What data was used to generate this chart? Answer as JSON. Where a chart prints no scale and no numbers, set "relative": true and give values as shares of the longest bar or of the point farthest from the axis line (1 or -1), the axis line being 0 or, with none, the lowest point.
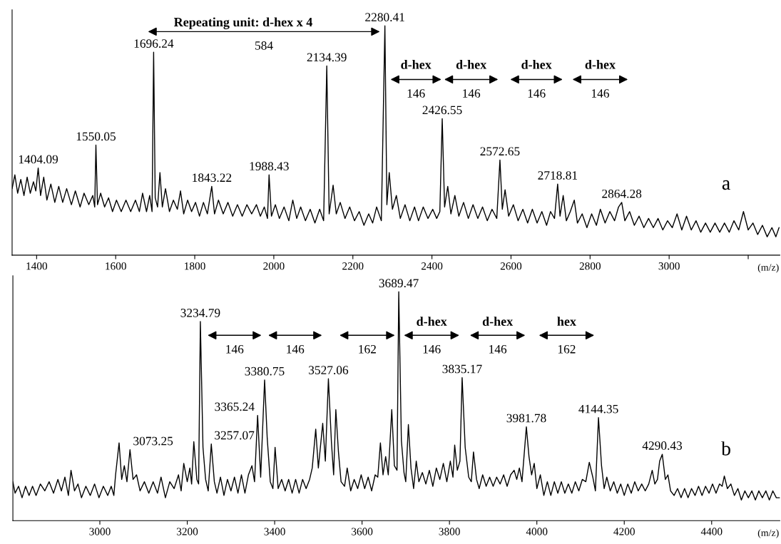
{
  "chart_data": [
    {
      "type": "line",
      "relative": true,
      "xlabel": "(m/z)",
      "xlim": [
        1338,
        3280
      ],
      "xticks": [
        1400,
        1600,
        1800,
        2000,
        2200,
        2400,
        2600,
        2800,
        3000,
        {
          "value": 3200,
          "label": null
        }
      ],
      "series": [
        {
          "color": "#000000",
          "x": [
            1338,
            1345,
            1352,
            1360,
            1368,
            1376,
            1384,
            1392,
            1398,
            1404,
            1410,
            1418,
            1426,
            1436,
            1446,
            1456,
            1466,
            1476,
            1488,
            1498,
            1510,
            1520,
            1532,
            1542,
            1547,
            1550,
            1554,
            1562,
            1572,
            1582,
            1592,
            1602,
            1614,
            1626,
            1638,
            1650,
            1660,
            1668,
            1678,
            1686,
            1692,
            1696,
            1700,
            1706,
            1712,
            1718,
            1726,
            1736,
            1746,
            1756,
            1764,
            1772,
            1782,
            1792,
            1802,
            1812,
            1822,
            1832,
            1843,
            1850,
            1860,
            1872,
            1884,
            1896,
            1908,
            1920,
            1932,
            1944,
            1956,
            1966,
            1976,
            1984,
            1988,
            1994,
            2004,
            2014,
            2026,
            2038,
            2048,
            2058,
            2068,
            2080,
            2092,
            2104,
            2116,
            2126,
            2134,
            2140,
            2150,
            2158,
            2168,
            2180,
            2192,
            2204,
            2216,
            2228,
            2240,
            2250,
            2260,
            2272,
            2281,
            2286,
            2292,
            2300,
            2310,
            2320,
            2332,
            2344,
            2356,
            2366,
            2378,
            2390,
            2402,
            2412,
            2420,
            2426,
            2432,
            2440,
            2448,
            2458,
            2468,
            2480,
            2492,
            2504,
            2516,
            2528,
            2540,
            2552,
            2564,
            2572,
            2578,
            2585,
            2594,
            2606,
            2618,
            2630,
            2642,
            2654,
            2666,
            2678,
            2690,
            2700,
            2710,
            2718,
            2724,
            2732,
            2740,
            2750,
            2760,
            2768,
            2780,
            2792,
            2804,
            2816,
            2826,
            2838,
            2850,
            2862,
            2872,
            2880,
            2888,
            2900,
            2912,
            2924,
            2936,
            2948,
            2960,
            2972,
            2984,
            2996,
            3008,
            3020,
            3032,
            3044,
            3056,
            3068,
            3080,
            3092,
            3104,
            3116,
            3128,
            3140,
            3152,
            3164,
            3176,
            3188,
            3200,
            3212,
            3224,
            3236,
            3248,
            3260,
            3270,
            3278
          ],
          "values": [
            0.29,
            0.35,
            0.27,
            0.33,
            0.26,
            0.34,
            0.27,
            0.32,
            0.28,
            0.38,
            0.26,
            0.34,
            0.24,
            0.31,
            0.23,
            0.3,
            0.23,
            0.29,
            0.22,
            0.28,
            0.21,
            0.27,
            0.22,
            0.26,
            0.21,
            0.48,
            0.22,
            0.27,
            0.21,
            0.25,
            0.19,
            0.24,
            0.19,
            0.24,
            0.19,
            0.24,
            0.19,
            0.27,
            0.19,
            0.26,
            0.19,
            0.885,
            0.25,
            0.21,
            0.36,
            0.21,
            0.29,
            0.19,
            0.24,
            0.2,
            0.28,
            0.18,
            0.24,
            0.19,
            0.23,
            0.17,
            0.23,
            0.18,
            0.3,
            0.18,
            0.24,
            0.18,
            0.23,
            0.17,
            0.22,
            0.17,
            0.22,
            0.18,
            0.22,
            0.17,
            0.21,
            0.16,
            0.35,
            0.17,
            0.22,
            0.16,
            0.21,
            0.15,
            0.24,
            0.16,
            0.21,
            0.15,
            0.2,
            0.14,
            0.2,
            0.15,
            0.825,
            0.18,
            0.305,
            0.18,
            0.23,
            0.16,
            0.21,
            0.15,
            0.19,
            0.13,
            0.18,
            0.14,
            0.21,
            0.15,
            1.0,
            0.22,
            0.36,
            0.2,
            0.26,
            0.16,
            0.22,
            0.15,
            0.21,
            0.15,
            0.21,
            0.16,
            0.2,
            0.16,
            0.19,
            0.595,
            0.21,
            0.3,
            0.18,
            0.26,
            0.17,
            0.23,
            0.16,
            0.22,
            0.16,
            0.21,
            0.15,
            0.2,
            0.16,
            0.415,
            0.2,
            0.285,
            0.17,
            0.22,
            0.15,
            0.2,
            0.14,
            0.2,
            0.14,
            0.19,
            0.13,
            0.19,
            0.16,
            0.31,
            0.17,
            0.26,
            0.15,
            0.19,
            0.24,
            0.14,
            0.18,
            0.12,
            0.18,
            0.13,
            0.2,
            0.14,
            0.19,
            0.15,
            0.21,
            0.23,
            0.15,
            0.19,
            0.13,
            0.17,
            0.12,
            0.16,
            0.12,
            0.16,
            0.11,
            0.15,
            0.12,
            0.18,
            0.11,
            0.17,
            0.11,
            0.15,
            0.1,
            0.14,
            0.1,
            0.14,
            0.1,
            0.14,
            0.1,
            0.15,
            0.11,
            0.19,
            0.11,
            0.14,
            0.09,
            0.13,
            0.08,
            0.12,
            0.08,
            0.12
          ]
        }
      ],
      "annotations": [
        "Repeating unit: d-hex x 4",
        "584",
        "d-hex",
        "146",
        "d-hex",
        "146",
        "d-hex",
        "146",
        "d-hex",
        "146",
        {
          "text": "1404.09",
          "x": 1404,
          "y": 0.38
        },
        {
          "text": "1550.05",
          "x": 1550,
          "y": 0.48
        },
        {
          "text": "1696.24",
          "x": 1696,
          "y": 0.885
        },
        {
          "text": "1843.22",
          "x": 1843,
          "y": 0.3
        },
        {
          "text": "1988.43",
          "x": 1988,
          "y": 0.35
        },
        {
          "text": "2134.39",
          "x": 2134,
          "y": 0.825
        },
        {
          "text": "2280.41",
          "x": 2281,
          "y": 1.0
        },
        {
          "text": "2426.55",
          "x": 2426,
          "y": 0.595
        },
        {
          "text": "2572.65",
          "x": 2572,
          "y": 0.415
        },
        {
          "text": "2718.81",
          "x": 2718,
          "y": 0.31
        },
        {
          "text": "2864.28",
          "x": 2880,
          "y": 0.23
        },
        "a"
      ]
    },
    {
      "type": "line",
      "relative": true,
      "xlabel": "(m/z)",
      "xlim": [
        2801,
        4556
      ],
      "xticks": [
        3000,
        3200,
        3400,
        3600,
        3800,
        4000,
        4200,
        4400
      ],
      "series": [
        {
          "color": "#000000",
          "x": [
            2801,
            2806,
            2814,
            2822,
            2830,
            2838,
            2846,
            2854,
            2864,
            2874,
            2884,
            2894,
            2904,
            2912,
            2920,
            2928,
            2934,
            2942,
            2950,
            2958,
            2968,
            2978,
            2988,
            2998,
            3008,
            3018,
            3026,
            3032,
            3036,
            3044,
            3050,
            3056,
            3062,
            3069,
            3076,
            3084,
            3092,
            3102,
            3112,
            3122,
            3132,
            3140,
            3150,
            3160,
            3170,
            3180,
            3186,
            3192,
            3200,
            3206,
            3210,
            3215,
            3222,
            3226,
            3230,
            3236,
            3242,
            3248,
            3255,
            3262,
            3268,
            3276,
            3284,
            3292,
            3300,
            3308,
            3316,
            3324,
            3332,
            3340,
            3348,
            3354,
            3361,
            3368,
            3377,
            3383,
            3390,
            3396,
            3401,
            3408,
            3416,
            3424,
            3432,
            3440,
            3448,
            3456,
            3464,
            3472,
            3480,
            3486,
            3494,
            3500,
            3510,
            3516,
            3523,
            3530,
            3535,
            3540,
            3546,
            3552,
            3560,
            3566,
            3574,
            3582,
            3590,
            3598,
            3606,
            3614,
            3622,
            3630,
            3636,
            3642,
            3648,
            3654,
            3660,
            3668,
            3674,
            3680,
            3684,
            3690,
            3696,
            3700,
            3706,
            3712,
            3718,
            3724,
            3730,
            3738,
            3746,
            3754,
            3762,
            3770,
            3778,
            3786,
            3794,
            3802,
            3808,
            3812,
            3818,
            3824,
            3829,
            3836,
            3844,
            3850,
            3855,
            3862,
            3868,
            3876,
            3884,
            3892,
            3900,
            3908,
            3916,
            3924,
            3932,
            3940,
            3948,
            3954,
            3960,
            3966,
            3976,
            3982,
            3988,
            3994,
            4000,
            4008,
            4016,
            4024,
            4032,
            4040,
            4048,
            4056,
            4064,
            4072,
            4080,
            4088,
            4096,
            4104,
            4112,
            4120,
            4128,
            4134,
            4141,
            4148,
            4154,
            4160,
            4168,
            4176,
            4184,
            4192,
            4200,
            4208,
            4216,
            4224,
            4232,
            4240,
            4248,
            4256,
            4264,
            4270,
            4276,
            4281,
            4287,
            4294,
            4300,
            4306,
            4314,
            4322,
            4330,
            4338,
            4346,
            4354,
            4362,
            4370,
            4378,
            4386,
            4394,
            4402,
            4410,
            4418,
            4424,
            4429,
            4436,
            4444,
            4452,
            4460,
            4468,
            4476,
            4484,
            4492,
            4500,
            4508,
            4516,
            4524,
            4532,
            4540,
            4548,
            4556
          ],
          "values": [
            0.17,
            0.12,
            0.15,
            0.1,
            0.15,
            0.11,
            0.15,
            0.11,
            0.16,
            0.13,
            0.17,
            0.12,
            0.18,
            0.13,
            0.19,
            0.11,
            0.22,
            0.13,
            0.16,
            0.1,
            0.15,
            0.11,
            0.16,
            0.1,
            0.15,
            0.11,
            0.15,
            0.11,
            0.2,
            0.34,
            0.18,
            0.24,
            0.17,
            0.31,
            0.18,
            0.2,
            0.13,
            0.17,
            0.12,
            0.17,
            0.12,
            0.19,
            0.1,
            0.17,
            0.14,
            0.2,
            0.13,
            0.25,
            0.17,
            0.23,
            0.16,
            0.345,
            0.18,
            0.16,
            0.87,
            0.32,
            0.18,
            0.13,
            0.335,
            0.17,
            0.12,
            0.19,
            0.11,
            0.18,
            0.13,
            0.19,
            0.12,
            0.2,
            0.12,
            0.2,
            0.24,
            0.17,
            0.46,
            0.19,
            0.615,
            0.36,
            0.17,
            0.14,
            0.32,
            0.14,
            0.18,
            0.13,
            0.18,
            0.12,
            0.18,
            0.12,
            0.18,
            0.14,
            0.18,
            0.23,
            0.4,
            0.23,
            0.425,
            0.26,
            0.62,
            0.34,
            0.2,
            0.485,
            0.3,
            0.17,
            0.15,
            0.23,
            0.13,
            0.18,
            0.14,
            0.2,
            0.14,
            0.19,
            0.13,
            0.2,
            0.19,
            0.34,
            0.2,
            0.28,
            0.2,
            0.485,
            0.24,
            0.22,
            1.0,
            0.35,
            0.21,
            0.17,
            0.42,
            0.23,
            0.14,
            0.26,
            0.17,
            0.21,
            0.16,
            0.22,
            0.15,
            0.23,
            0.18,
            0.25,
            0.17,
            0.26,
            0.19,
            0.33,
            0.22,
            0.26,
            0.625,
            0.32,
            0.19,
            0.17,
            0.3,
            0.18,
            0.14,
            0.2,
            0.15,
            0.19,
            0.15,
            0.19,
            0.16,
            0.2,
            0.15,
            0.2,
            0.22,
            0.18,
            0.23,
            0.17,
            0.41,
            0.28,
            0.2,
            0.25,
            0.14,
            0.2,
            0.11,
            0.17,
            0.11,
            0.17,
            0.12,
            0.17,
            0.12,
            0.16,
            0.12,
            0.17,
            0.13,
            0.18,
            0.17,
            0.255,
            0.19,
            0.13,
            0.45,
            0.24,
            0.14,
            0.19,
            0.13,
            0.17,
            0.12,
            0.16,
            0.11,
            0.16,
            0.12,
            0.17,
            0.13,
            0.16,
            0.13,
            0.16,
            0.22,
            0.16,
            0.18,
            0.26,
            0.29,
            0.18,
            0.2,
            0.13,
            0.11,
            0.14,
            0.1,
            0.14,
            0.1,
            0.14,
            0.11,
            0.15,
            0.11,
            0.15,
            0.12,
            0.16,
            0.12,
            0.16,
            0.15,
            0.195,
            0.14,
            0.16,
            0.11,
            0.14,
            0.09,
            0.13,
            0.1,
            0.13,
            0.09,
            0.13,
            0.1,
            0.13,
            0.09,
            0.13,
            0.1,
            0.1
          ]
        }
      ],
      "annotations": [
        "146",
        "146",
        "162",
        "d-hex",
        "146",
        "d-hex",
        "146",
        "hex",
        "162",
        {
          "text": "3073.25",
          "x": 3069,
          "y": 0.31
        },
        {
          "text": "3234.79",
          "x": 3230,
          "y": 0.87
        },
        {
          "text": "3257.07",
          "x": 3255,
          "y": 0.335
        },
        {
          "text": "3365.24",
          "x": 3361,
          "y": 0.46
        },
        {
          "text": "3380.75",
          "x": 3377,
          "y": 0.615
        },
        {
          "text": "3527.06",
          "x": 3523,
          "y": 0.62
        },
        {
          "text": "3689.47",
          "x": 3684,
          "y": 1.0
        },
        {
          "text": "3835.17",
          "x": 3829,
          "y": 0.625
        },
        {
          "text": "3981.78",
          "x": 3976,
          "y": 0.41
        },
        {
          "text": "4144.35",
          "x": 4141,
          "y": 0.45
        },
        {
          "text": "4290.43",
          "x": 4287,
          "y": 0.29
        },
        "b"
      ]
    }
  ]
}
